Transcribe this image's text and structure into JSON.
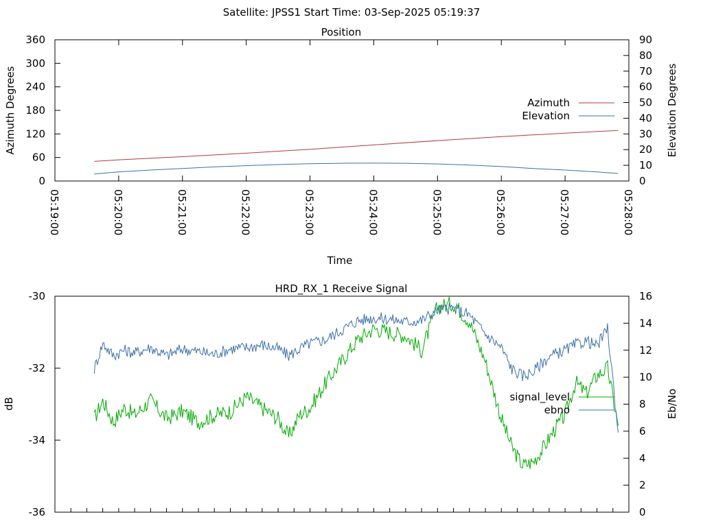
{
  "header": "Satellite: JPSS1    Start Time: 03-Sep-2025 05:19:37",
  "chart_data": [
    {
      "type": "line",
      "title": "Position",
      "xlabel": "Time",
      "ylabel": "Azimuth Degrees",
      "y2label": "Elevation Degrees",
      "xlim": [
        "05:19:00",
        "05:28:00"
      ],
      "ylim": [
        0,
        360
      ],
      "y2lim": [
        0,
        90
      ],
      "yticks": [
        0,
        60,
        120,
        180,
        240,
        300,
        360
      ],
      "y2ticks": [
        0,
        10,
        20,
        30,
        40,
        50,
        60,
        70,
        80,
        90
      ],
      "xticks": [
        "05:19:00",
        "05:20:00",
        "05:21:00",
        "05:22:00",
        "05:23:00",
        "05:24:00",
        "05:25:00",
        "05:26:00",
        "05:27:00",
        "05:28:00"
      ],
      "legend_position": "right",
      "series": [
        {
          "name": "Azimuth",
          "axis": "left",
          "color": "#b03a3a",
          "x": [
            "05:19:37",
            "05:20:00",
            "05:21:00",
            "05:22:00",
            "05:23:00",
            "05:24:00",
            "05:25:00",
            "05:26:00",
            "05:27:00",
            "05:27:50"
          ],
          "values": [
            50,
            54,
            62,
            71,
            81,
            92,
            103,
            113,
            122,
            129
          ]
        },
        {
          "name": "Elevation",
          "axis": "right",
          "color": "#3a6fa8",
          "x": [
            "05:19:37",
            "05:20:00",
            "05:20:30",
            "05:21:00",
            "05:21:30",
            "05:22:00",
            "05:22:30",
            "05:23:00",
            "05:23:30",
            "05:24:00",
            "05:24:30",
            "05:25:00",
            "05:25:30",
            "05:26:00",
            "05:26:30",
            "05:27:00",
            "05:27:30",
            "05:27:50"
          ],
          "values": [
            4.5,
            5.8,
            7.0,
            8.0,
            9.0,
            9.8,
            10.5,
            11.0,
            11.3,
            11.4,
            11.3,
            10.9,
            10.2,
            9.2,
            8.0,
            7.0,
            5.8,
            4.8
          ]
        }
      ]
    },
    {
      "type": "line",
      "title": "HRD_RX_1 Receive Signal",
      "xlabel": "",
      "ylabel": "dB",
      "y2label": "Eb/No",
      "xlim": [
        "05:19:00",
        "05:28:00"
      ],
      "ylim": [
        -36,
        -30
      ],
      "y2lim": [
        0,
        16
      ],
      "yticks": [
        -36,
        -34,
        -32,
        -30
      ],
      "y2ticks": [
        0,
        2,
        4,
        6,
        8,
        10,
        12,
        14,
        16
      ],
      "legend_position": "right",
      "series": [
        {
          "name": "signal_level",
          "axis": "left",
          "color": "#00aa00",
          "x": [
            "05:19:37",
            "05:19:45",
            "05:19:55",
            "05:20:05",
            "05:20:15",
            "05:20:30",
            "05:20:45",
            "05:21:00",
            "05:21:15",
            "05:21:30",
            "05:21:45",
            "05:22:00",
            "05:22:15",
            "05:22:30",
            "05:22:40",
            "05:22:50",
            "05:23:00",
            "05:23:15",
            "05:23:30",
            "05:23:45",
            "05:24:00",
            "05:24:15",
            "05:24:30",
            "05:24:45",
            "05:25:00",
            "05:25:15",
            "05:25:30",
            "05:25:45",
            "05:26:00",
            "05:26:10",
            "05:26:20",
            "05:26:30",
            "05:26:40",
            "05:26:50",
            "05:27:00",
            "05:27:10",
            "05:27:20",
            "05:27:30",
            "05:27:40",
            "05:27:50"
          ],
          "values": [
            -33.4,
            -32.9,
            -33.5,
            -33.1,
            -33.3,
            -32.9,
            -33.4,
            -33.2,
            -33.5,
            -33.3,
            -33.2,
            -32.8,
            -33.1,
            -33.4,
            -33.9,
            -33.3,
            -33.1,
            -32.4,
            -31.8,
            -31.2,
            -30.9,
            -31.0,
            -31.1,
            -31.5,
            -30.3,
            -30.2,
            -30.7,
            -31.8,
            -33.4,
            -34.2,
            -34.7,
            -34.6,
            -34.2,
            -33.7,
            -33.3,
            -32.4,
            -32.7,
            -32.2,
            -32.0,
            -33.6
          ]
        },
        {
          "name": "ebno",
          "axis": "right",
          "color": "#3a6fa8",
          "x": [
            "05:19:37",
            "05:19:45",
            "05:19:55",
            "05:20:05",
            "05:20:15",
            "05:20:30",
            "05:20:45",
            "05:21:00",
            "05:21:15",
            "05:21:30",
            "05:21:45",
            "05:22:00",
            "05:22:15",
            "05:22:30",
            "05:22:40",
            "05:22:50",
            "05:23:00",
            "05:23:15",
            "05:23:30",
            "05:23:45",
            "05:24:00",
            "05:24:15",
            "05:24:30",
            "05:24:45",
            "05:25:00",
            "05:25:15",
            "05:25:30",
            "05:25:45",
            "05:26:00",
            "05:26:10",
            "05:26:20",
            "05:26:30",
            "05:26:40",
            "05:26:50",
            "05:27:00",
            "05:27:10",
            "05:27:20",
            "05:27:30",
            "05:27:40",
            "05:27:50"
          ],
          "values": [
            10.6,
            12.5,
            11.6,
            12.0,
            11.8,
            12.2,
            11.6,
            12.1,
            11.9,
            11.7,
            12.1,
            12.2,
            12.4,
            12.1,
            11.6,
            12.1,
            12.5,
            12.8,
            13.5,
            14.2,
            14.4,
            14.3,
            14.1,
            14.2,
            15.0,
            15.1,
            14.6,
            13.2,
            12.2,
            10.6,
            10.1,
            10.4,
            11.2,
            11.7,
            12.0,
            12.4,
            12.7,
            12.3,
            13.6,
            5.9
          ]
        }
      ]
    }
  ]
}
